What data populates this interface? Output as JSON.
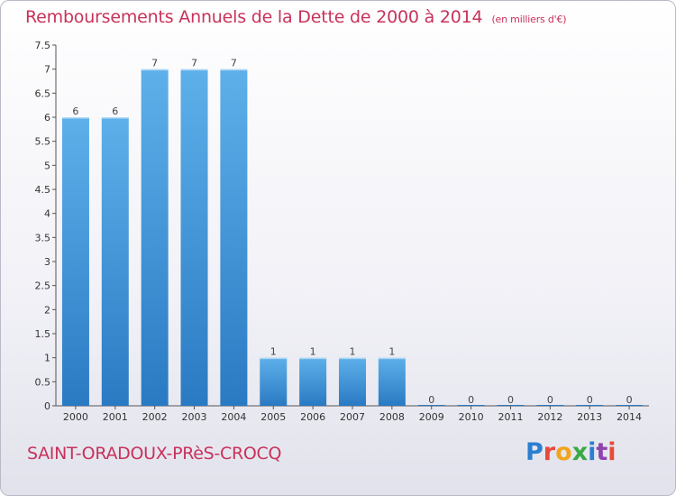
{
  "header": {
    "title": "Remboursements Annuels de la Dette de 2000 à 2014",
    "unit": "(en milliers d'€)"
  },
  "footer": {
    "commune": "SAINT-ORADOUX-PRèS-CROCQ",
    "logo": "Proxiti"
  },
  "colors": {
    "title": "#c8325a",
    "bar_top": "#5eb0ea",
    "bar_bottom": "#2a7ac3"
  },
  "chart_data": {
    "type": "bar",
    "title": "Remboursements Annuels de la Dette de 2000 à 2014",
    "categories": [
      "2000",
      "2001",
      "2002",
      "2003",
      "2004",
      "2005",
      "2006",
      "2007",
      "2008",
      "2009",
      "2010",
      "2011",
      "2012",
      "2013",
      "2014"
    ],
    "values": [
      6,
      6,
      7,
      7,
      7,
      1,
      1,
      1,
      1,
      0,
      0,
      0,
      0,
      0,
      0
    ],
    "value_labels": [
      "6",
      "6",
      "7",
      "7",
      "7",
      "1",
      "1",
      "1",
      "1",
      "0",
      "0",
      "0",
      "0",
      "0",
      "0"
    ],
    "yticks": [
      0,
      0.5,
      1,
      1.5,
      2,
      2.5,
      3,
      3.5,
      4,
      4.5,
      5,
      5.5,
      6,
      6.5,
      7,
      7.5
    ],
    "ytick_labels": [
      "0",
      "0.5",
      "1",
      "1.5",
      "2",
      "2.5",
      "3",
      "3.5",
      "4",
      "4.5",
      "5",
      "5.5",
      "6",
      "6.5",
      "7",
      "7.5"
    ],
    "ylim": [
      0,
      7.5
    ],
    "xlabel": "",
    "ylabel": "",
    "grid": false,
    "legend": "none"
  }
}
